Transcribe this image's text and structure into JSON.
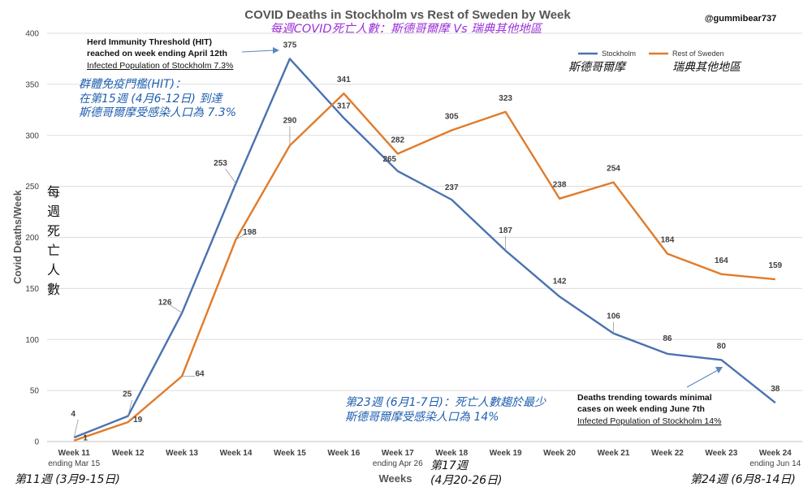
{
  "handle": "@gummibear737",
  "chart_data": {
    "type": "line",
    "title": "COVID Deaths in Stockholm vs Rest of Sweden by Week",
    "subtitle_zh": "每週COVID死亡人數：斯德哥爾摩 Vs 瑞典其他地區",
    "xlabel": "Weeks",
    "ylabel": "Covid Deaths/Week",
    "ylabel_zh": [
      "每",
      "週",
      "死",
      "亡",
      "人",
      "數"
    ],
    "ylim": [
      0,
      400
    ],
    "yticks": [
      "0",
      "50",
      "100",
      "150",
      "200",
      "250",
      "300",
      "350",
      "400"
    ],
    "grid": true,
    "legend_position": "top-right",
    "categories": [
      "Week 11",
      "Week 12",
      "Week 13",
      "Week 14",
      "Week 15",
      "Week 16",
      "Week 17",
      "Week 18",
      "Week 19",
      "Week 20",
      "Week 21",
      "Week 22",
      "Week 23",
      "Week 24"
    ],
    "category_sublabels": {
      "0": "ending Mar 15",
      "6": "ending Apr 26",
      "13": "ending Jun 14"
    },
    "series": [
      {
        "name": "Stockholm",
        "name_zh": "斯德哥爾摩",
        "color": "#4a72b0",
        "values": [
          4,
          25,
          126,
          253,
          375,
          317,
          265,
          237,
          187,
          142,
          106,
          86,
          80,
          38
        ]
      },
      {
        "name": "Rest of Sweden",
        "name_zh": "瑞典其他地區",
        "color": "#e07b2a",
        "values": [
          1,
          19,
          64,
          198,
          290,
          341,
          282,
          305,
          323,
          238,
          254,
          184,
          164,
          159
        ]
      }
    ],
    "annotations": {
      "hit_en": [
        "Herd Immunity Threshold (HIT)",
        "reached on week ending April 12th",
        "Infected Population of Stockholm 7.3%"
      ],
      "hit_zh": [
        "群體免疫門檻(HIT)：",
        "在第15週 (4月6-12日) 到達",
        "斯德哥爾摩受感染人口為 7.3%"
      ],
      "trend_en": [
        "Deaths trending towards minimal",
        "cases on week ending June 7th",
        "Infected Population of Stockholm 14%"
      ],
      "trend_zh": [
        "第23週 (6月1-7日)：死亡人數趨於最少",
        "斯德哥爾摩受感染人口為 14%"
      ],
      "week_zh": {
        "week11": "第11週 (3月9-15日)",
        "week17": [
          "第17週",
          "(4月20-26日)"
        ],
        "week24": "第24週 (6月8-14日)"
      }
    }
  }
}
